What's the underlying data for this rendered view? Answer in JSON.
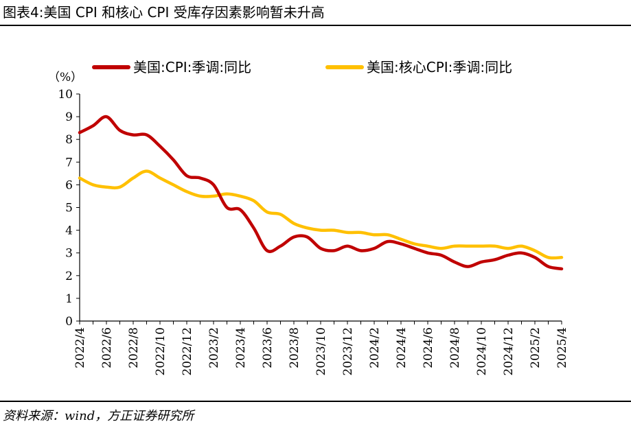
{
  "figure": {
    "title": "图表4:美国 CPI 和核心 CPI 受库存因素影响暂未升高",
    "source": "资料来源：wind，方正证券研究所"
  },
  "chart_data": {
    "type": "line",
    "ylabel": "（%）",
    "ylim": [
      0,
      10
    ],
    "yticks": [
      0,
      1,
      2,
      3,
      4,
      5,
      6,
      7,
      8,
      9,
      10
    ],
    "grid": false,
    "legend_position": "top",
    "xtick_labels": [
      "2022/4",
      "2022/6",
      "2022/8",
      "2022/10",
      "2022/12",
      "2023/2",
      "2023/4",
      "2023/6",
      "2023/8",
      "2023/10",
      "2023/12",
      "2024/2",
      "2024/4",
      "2024/6",
      "2024/8",
      "2024/10",
      "2024/12",
      "2025/2",
      "2025/4"
    ],
    "x": [
      "2022/4",
      "2022/5",
      "2022/6",
      "2022/7",
      "2022/8",
      "2022/9",
      "2022/10",
      "2022/11",
      "2022/12",
      "2023/1",
      "2023/2",
      "2023/3",
      "2023/4",
      "2023/5",
      "2023/6",
      "2023/7",
      "2023/8",
      "2023/9",
      "2023/10",
      "2023/11",
      "2023/12",
      "2024/1",
      "2024/2",
      "2024/3",
      "2024/4",
      "2024/5",
      "2024/6",
      "2024/7",
      "2024/8",
      "2024/9",
      "2024/10",
      "2024/11",
      "2024/12",
      "2025/1",
      "2025/2",
      "2025/3",
      "2025/4"
    ],
    "series": [
      {
        "name": "美国:CPI:季调:同比",
        "color": "#C00000",
        "values": [
          8.3,
          8.6,
          9.0,
          8.4,
          8.2,
          8.2,
          7.7,
          7.1,
          6.4,
          6.3,
          6.0,
          5.0,
          4.9,
          4.1,
          3.1,
          3.3,
          3.7,
          3.7,
          3.2,
          3.1,
          3.3,
          3.1,
          3.2,
          3.5,
          3.4,
          3.2,
          3.0,
          2.9,
          2.6,
          2.4,
          2.6,
          2.7,
          2.9,
          3.0,
          2.8,
          2.4,
          2.3
        ]
      },
      {
        "name": "美国:核心CPI:季调:同比",
        "color": "#FFC000",
        "values": [
          6.3,
          6.0,
          5.9,
          5.9,
          6.3,
          6.6,
          6.3,
          6.0,
          5.7,
          5.5,
          5.5,
          5.6,
          5.5,
          5.3,
          4.8,
          4.7,
          4.3,
          4.1,
          4.0,
          4.0,
          3.9,
          3.9,
          3.8,
          3.8,
          3.6,
          3.4,
          3.3,
          3.2,
          3.3,
          3.3,
          3.3,
          3.3,
          3.2,
          3.3,
          3.1,
          2.8,
          2.8
        ]
      }
    ]
  }
}
